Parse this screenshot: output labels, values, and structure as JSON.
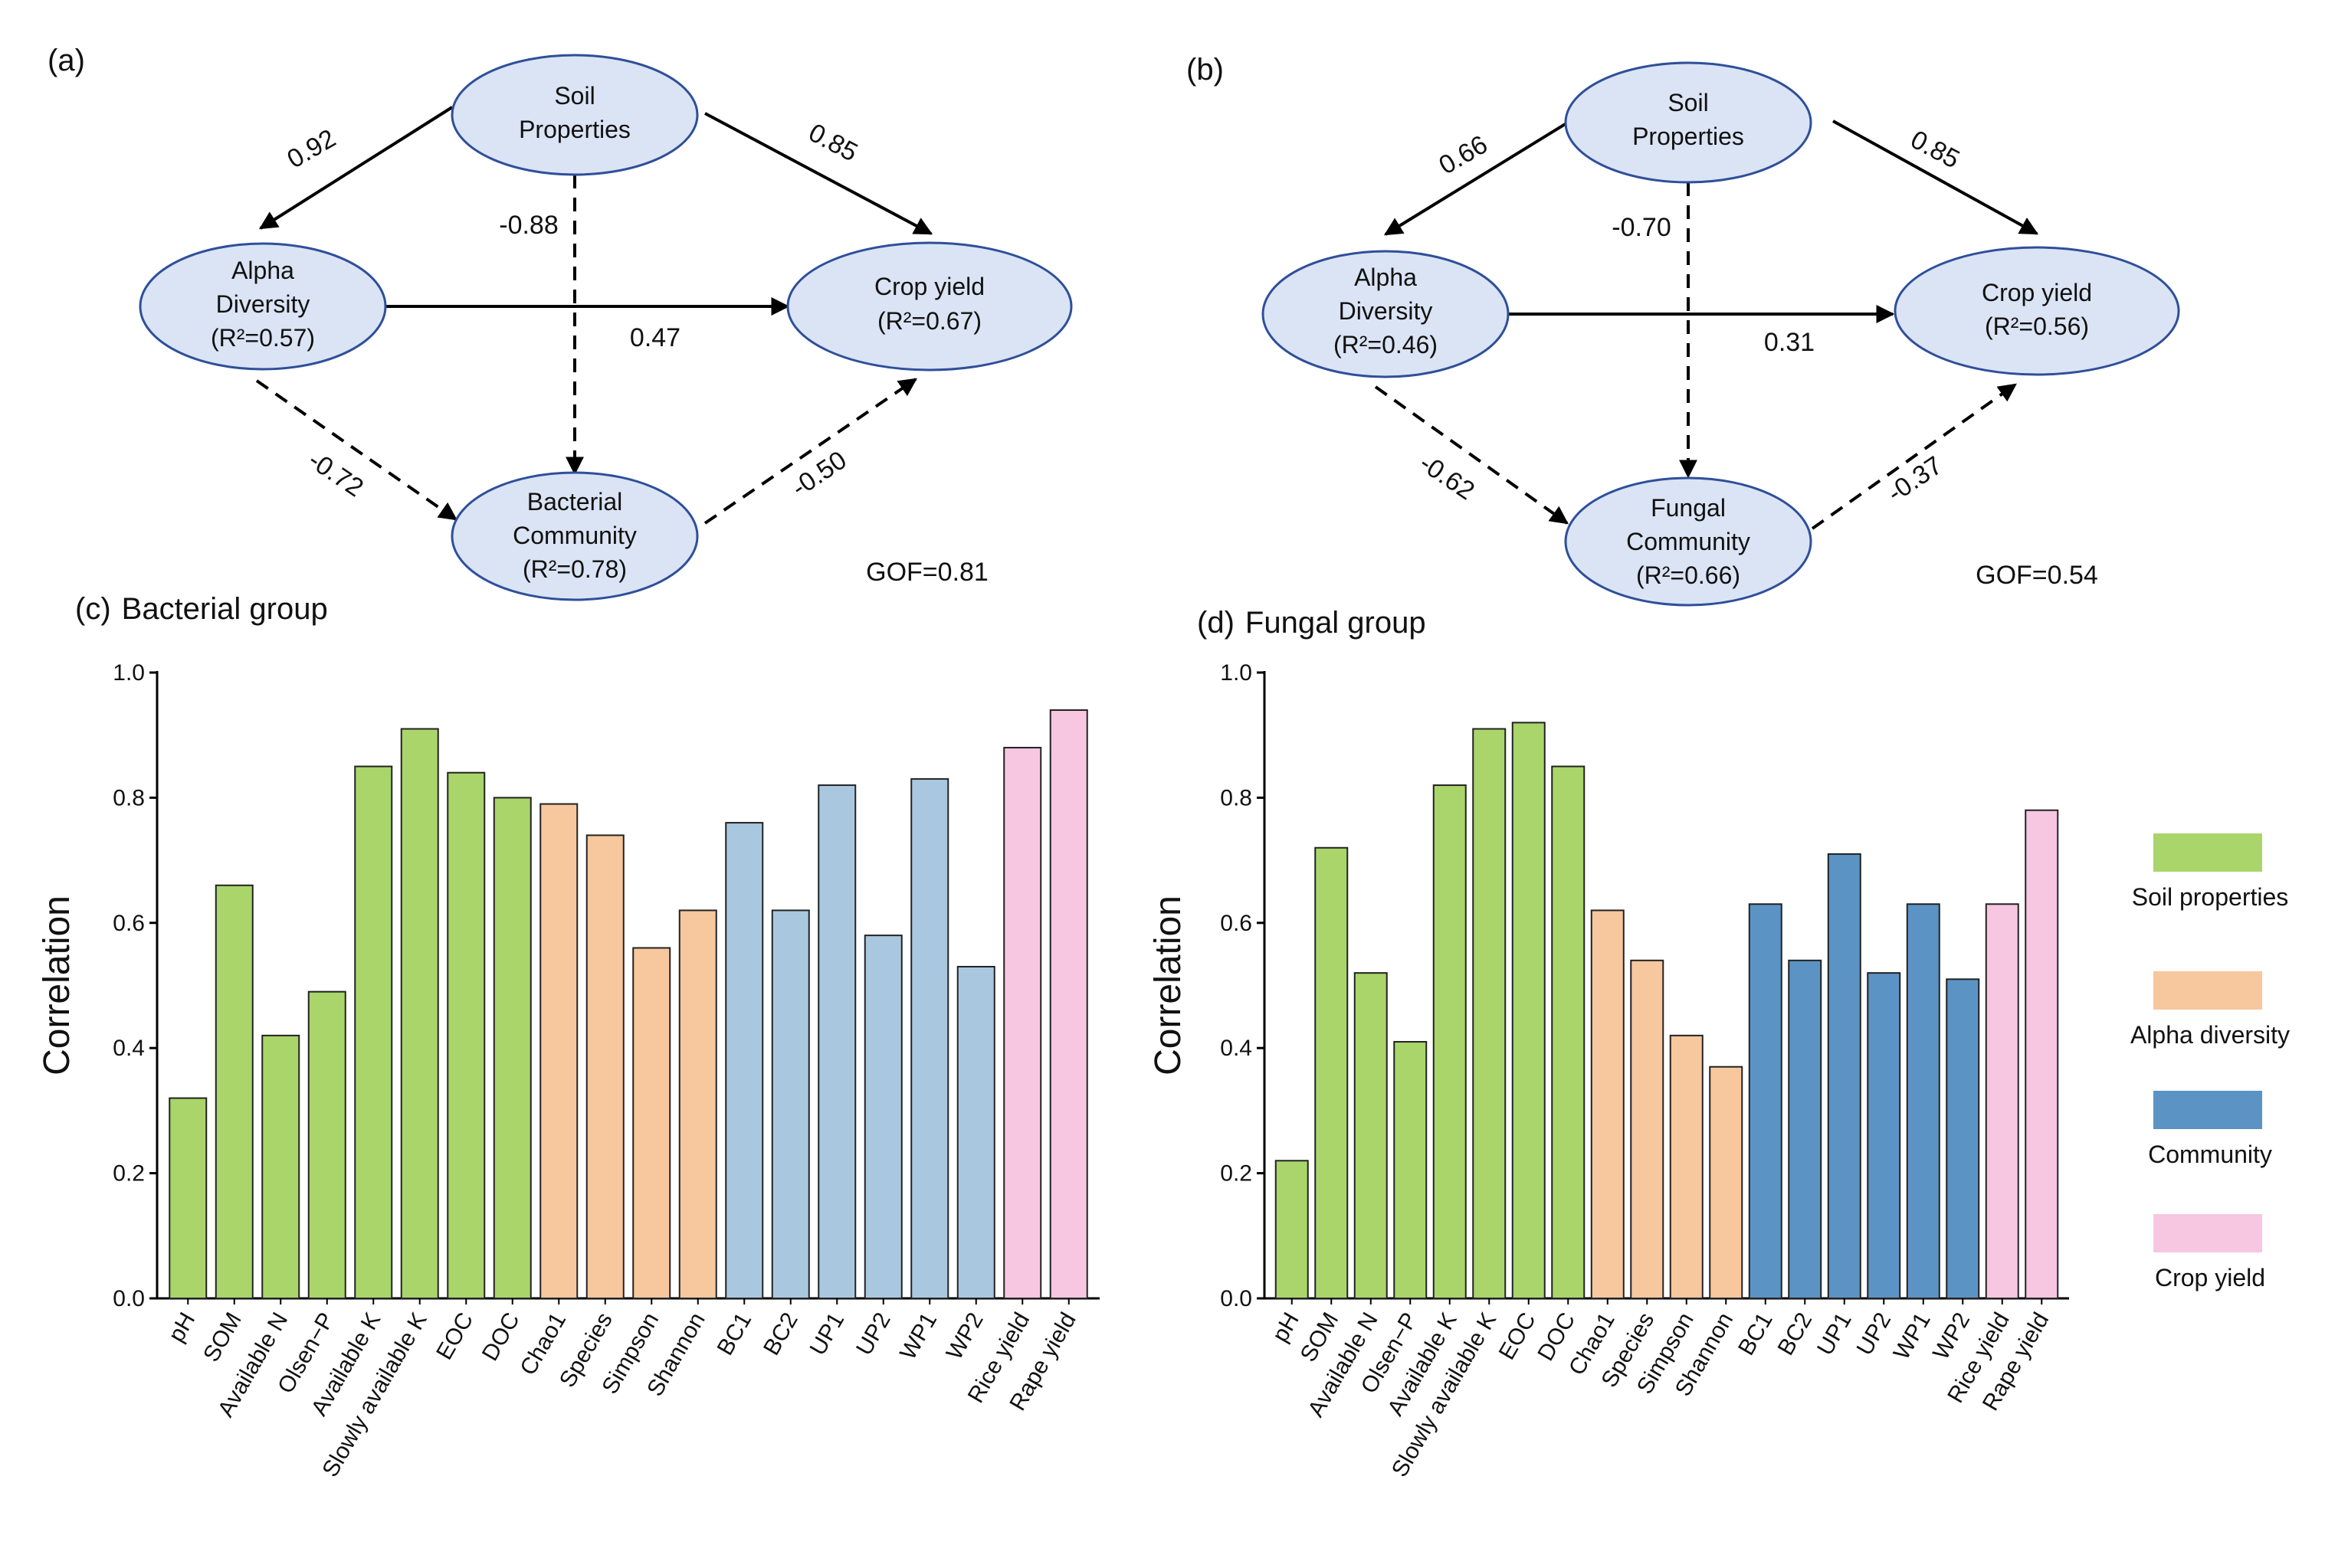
{
  "colors": {
    "soil": "#a9d56a",
    "alpha": "#f7c79d",
    "community_c": "#a9c8e0",
    "community_d": "#5b93c4",
    "crop": "#f7c6e0",
    "node_fill": "#dbe4f4",
    "node_stroke": "#2f4f9a"
  },
  "sem_a": {
    "label": "(a)",
    "nodes": {
      "soil": [
        "Soil",
        "Properties"
      ],
      "alpha": [
        "Alpha",
        "Diversity",
        "(R²=0.57)"
      ],
      "crop": [
        "Crop yield",
        "(R²=0.67)"
      ],
      "community": [
        "Bacterial",
        "Community",
        "(R²=0.78)"
      ]
    },
    "paths": {
      "soil_alpha": "0.92",
      "soil_crop": "0.85",
      "soil_community": "-0.88",
      "alpha_crop": "0.47",
      "alpha_community": "-0.72",
      "community_crop": "-0.50"
    },
    "gof": "GOF=0.81"
  },
  "sem_b": {
    "label": "(b)",
    "nodes": {
      "soil": [
        "Soil",
        "Properties"
      ],
      "alpha": [
        "Alpha",
        "Diversity",
        "(R²=0.46)"
      ],
      "crop": [
        "Crop yield",
        "(R²=0.56)"
      ],
      "community": [
        "Fungal",
        "Community",
        "(R²=0.66)"
      ]
    },
    "paths": {
      "soil_alpha": "0.66",
      "soil_crop": "0.85",
      "soil_community": "-0.70",
      "alpha_crop": "0.31",
      "alpha_community": "-0.62",
      "community_crop": "-0.37"
    },
    "gof": "GOF=0.54"
  },
  "chart_data": [
    {
      "type": "bar",
      "panel": "(c)",
      "title": "Bacterial group",
      "ylabel": "Correlation",
      "xlabel": "",
      "ylim": [
        0,
        1.0
      ],
      "yticks": [
        "0.0",
        "0.2",
        "0.4",
        "0.6",
        "0.8",
        "1.0"
      ],
      "categories": [
        "pH",
        "SOM",
        "Available N",
        "Olsen−P",
        "Available K",
        "Slowly available K",
        "EOC",
        "DOC",
        "Chao1",
        "Species",
        "Simpson",
        "Shannon",
        "BC1",
        "BC2",
        "UP1",
        "UP2",
        "WP1",
        "WP2",
        "Rice yield",
        "Rape yield"
      ],
      "values": [
        0.32,
        0.66,
        0.42,
        0.49,
        0.85,
        0.91,
        0.84,
        0.8,
        0.79,
        0.74,
        0.56,
        0.62,
        0.76,
        0.62,
        0.82,
        0.58,
        0.83,
        0.53,
        0.88,
        0.94
      ],
      "groups": [
        "soil",
        "soil",
        "soil",
        "soil",
        "soil",
        "soil",
        "soil",
        "soil",
        "alpha",
        "alpha",
        "alpha",
        "alpha",
        "community",
        "community",
        "community",
        "community",
        "community",
        "community",
        "crop",
        "crop"
      ]
    },
    {
      "type": "bar",
      "panel": "(d)",
      "title": "Fungal group",
      "ylabel": "Correlation",
      "xlabel": "",
      "ylim": [
        0,
        1.0
      ],
      "yticks": [
        "0.0",
        "0.2",
        "0.4",
        "0.6",
        "0.8",
        "1.0"
      ],
      "categories": [
        "pH",
        "SOM",
        "Available N",
        "Olsen−P",
        "Available K",
        "Slowly available K",
        "EOC",
        "DOC",
        "Chao1",
        "Species",
        "Simpson",
        "Shannon",
        "BC1",
        "BC2",
        "UP1",
        "UP2",
        "WP1",
        "WP2",
        "Rice yield",
        "Rape yield"
      ],
      "values": [
        0.22,
        0.72,
        0.52,
        0.41,
        0.82,
        0.91,
        0.92,
        0.85,
        0.62,
        0.54,
        0.42,
        0.37,
        0.63,
        0.54,
        0.71,
        0.52,
        0.63,
        0.51,
        0.63,
        0.78
      ],
      "groups": [
        "soil",
        "soil",
        "soil",
        "soil",
        "soil",
        "soil",
        "soil",
        "soil",
        "alpha",
        "alpha",
        "alpha",
        "alpha",
        "community",
        "community",
        "community",
        "community",
        "community",
        "community",
        "crop",
        "crop"
      ]
    }
  ],
  "legend": [
    {
      "key": "soil",
      "label": "Soil properties"
    },
    {
      "key": "alpha",
      "label": "Alpha diversity"
    },
    {
      "key": "community",
      "label": "Community"
    },
    {
      "key": "crop",
      "label": "Crop yield"
    }
  ]
}
